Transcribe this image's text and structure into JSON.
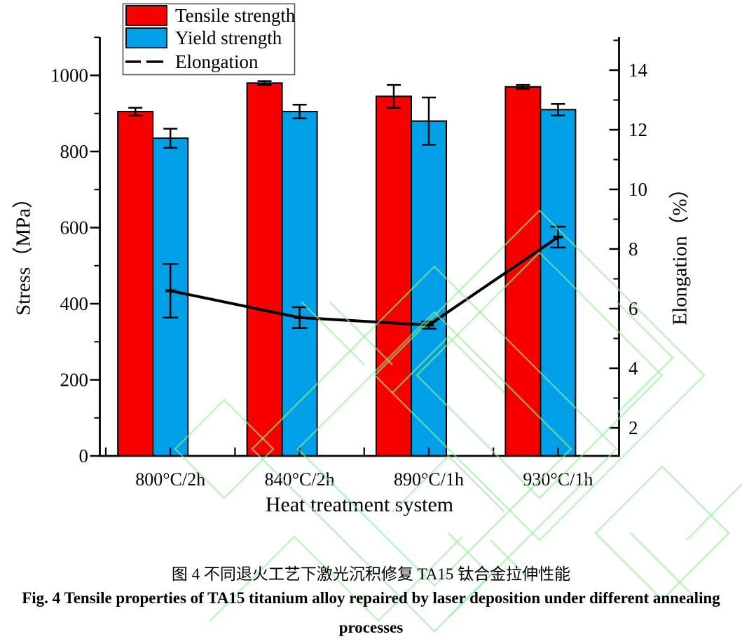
{
  "chart_data": {
    "type": "bar+line",
    "categories": [
      "800°C/2h",
      "840°C/2h",
      "890°C/1h",
      "930°C/1h"
    ],
    "series": [
      {
        "name": "Tensile strength",
        "type": "bar",
        "axis": "left",
        "color": "#f80000",
        "values": [
          905,
          980,
          945,
          970
        ],
        "errors": [
          10,
          5,
          30,
          5
        ]
      },
      {
        "name": "Yield strength",
        "type": "bar",
        "axis": "left",
        "color": "#00a0e9",
        "values": [
          835,
          905,
          880,
          910
        ],
        "errors": [
          25,
          18,
          62,
          15
        ]
      },
      {
        "name": "Elongation",
        "type": "line",
        "axis": "right",
        "color": "#000000",
        "values": [
          6.6,
          5.7,
          5.45,
          8.4
        ],
        "errors": [
          0.9,
          0.35,
          0.12,
          0.35
        ]
      }
    ],
    "xlabel": "Heat treatment system",
    "ylabel_left": "Stress（MPa）",
    "ylabel_right": "Elongation（%）",
    "left_axis": {
      "min": 0,
      "max": 1100,
      "major_ticks": [
        0,
        200,
        400,
        600,
        800,
        1000
      ],
      "minor_ticks": [
        100,
        300,
        500,
        700,
        900,
        1100
      ]
    },
    "right_axis": {
      "min": 1,
      "max": 15,
      "major_ticks": [
        2,
        4,
        6,
        8,
        10,
        12,
        14
      ],
      "minor_ticks": [
        3,
        5,
        7,
        9,
        11,
        13,
        15
      ]
    },
    "legend_position": "top-left",
    "grid": false,
    "watermark_color": "#90ee90"
  },
  "caption": {
    "line_cn": "图 4  不同退火工艺下激光沉积修复 TA15 钛合金拉伸性能",
    "line_en": "Fig. 4 Tensile properties of TA15 titanium alloy repaired by laser deposition under different annealing",
    "line_en2": "processes"
  }
}
